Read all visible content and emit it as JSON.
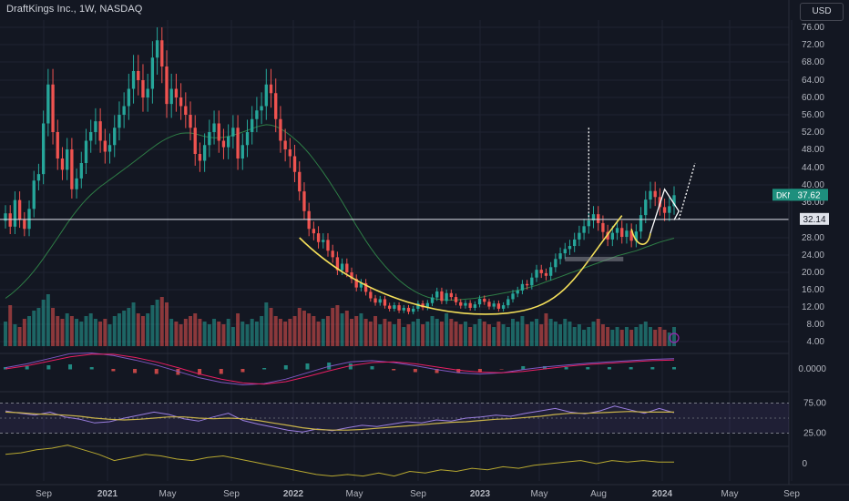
{
  "header": {
    "title": "DraftKings Inc., 1W, NASDAQ",
    "currency_button": "USD"
  },
  "colors": {
    "background": "#131722",
    "grid": "#1f2331",
    "up": "#26a69a",
    "down": "#ef5350",
    "ma_line": "#2e7d46",
    "cup_curve": "#f5e05a",
    "macd_line": "#7e57c2",
    "signal_line": "#e91e63",
    "rsi_line": "#9b7fe0",
    "rsi_ma": "#c9b34a",
    "osc_line": "#b7a830",
    "badge": "#1e8f7d"
  },
  "chart_data": [
    {
      "type": "candlestick",
      "title": "DraftKings Inc., 1W, NASDAQ",
      "x_ticks": [
        "Sep",
        "2021",
        "May",
        "Sep",
        "2022",
        "May",
        "Sep",
        "2023",
        "May",
        "Aug",
        "2024",
        "May",
        "Sep"
      ],
      "y_ticks": [
        "76.00",
        "72.00",
        "68.00",
        "64.00",
        "60.00",
        "56.00",
        "52.00",
        "48.00",
        "44.00",
        "40.00",
        "36.00",
        "28.00",
        "24.00",
        "20.00",
        "16.00",
        "12.00",
        "8.00",
        "4.00"
      ],
      "ylim": [
        4,
        78
      ],
      "scale": "log",
      "symbol_label": "DKNG",
      "last_price": "37.62",
      "horizontal_level": "32.14",
      "close": [
        33.5,
        30.5,
        36.5,
        32.0,
        30.0,
        34.5,
        41.0,
        42.5,
        54.0,
        63.0,
        52.0,
        46.0,
        43.5,
        48.0,
        39.0,
        41.5,
        45.0,
        50.0,
        52.0,
        54.5,
        50.0,
        47.5,
        49.0,
        53.0,
        56.0,
        58.0,
        62.0,
        66.0,
        64.0,
        60.0,
        62.0,
        69.0,
        73.0,
        67.0,
        58.5,
        62.0,
        60.0,
        58.0,
        56.0,
        53.0,
        47.0,
        45.5,
        49.0,
        52.0,
        54.0,
        50.0,
        48.5,
        51.0,
        53.0,
        46.0,
        49.0,
        52.0,
        55.0,
        57.0,
        58.0,
        63.0,
        61.0,
        55.0,
        50.0,
        48.0,
        46.5,
        43.0,
        38.5,
        34.0,
        30.0,
        29.0,
        27.0,
        27.5,
        25.0,
        23.5,
        20.5,
        22.0,
        20.0,
        18.5,
        16.5,
        17.5,
        15.5,
        14.0,
        13.0,
        13.8,
        12.3,
        11.6,
        12.4,
        11.2,
        11.8,
        10.9,
        11.6,
        12.8,
        11.9,
        12.9,
        14.2,
        15.6,
        13.4,
        15.2,
        14.3,
        13.1,
        12.3,
        12.9,
        11.8,
        12.6,
        13.9,
        13.2,
        12.1,
        12.8,
        11.6,
        12.4,
        13.8,
        15.1,
        15.8,
        17.3,
        17.0,
        18.8,
        20.6,
        19.8,
        19.2,
        21.2,
        23.1,
        24.4,
        25.4,
        26.1,
        27.6,
        29.1,
        30.6,
        31.9,
        33.3,
        31.3,
        29.3,
        27.6,
        29.1,
        30.2,
        28.2,
        29.6,
        27.3,
        29.4,
        33.1,
        36.6,
        38.6,
        37.2,
        34.9,
        33.6,
        35.1,
        37.62
      ],
      "moving_average": [
        14,
        14.8,
        15.7,
        16.7,
        17.8,
        19,
        20.3,
        21.7,
        23.2,
        24.8,
        26.4,
        28,
        29.6,
        31.2,
        32.7,
        34.1,
        35.4,
        36.6,
        37.7,
        38.7,
        39.6,
        40.4,
        41.2,
        42,
        42.8,
        43.6,
        44.4,
        45.2,
        46,
        46.8,
        47.6,
        48.4,
        49.2,
        49.9,
        50.5,
        51,
        51.4,
        51.7,
        51.8,
        51.8,
        51.6,
        51.3,
        51,
        50.8,
        50.7,
        50.7,
        50.8,
        51,
        51.3,
        51.6,
        52,
        52.4,
        52.8,
        53.2,
        53.5,
        53.7,
        53.6,
        53.3,
        52.8,
        52.1,
        51.3,
        50.4,
        49.4,
        48.3,
        47.1,
        45.8,
        44.4,
        42.9,
        41.3,
        39.6,
        37.9,
        36.1,
        34.3,
        32.5,
        30.7,
        29,
        27.3,
        25.7,
        24.2,
        22.8,
        21.5,
        20.3,
        19.2,
        18.2,
        17.3,
        16.5,
        15.8,
        15.2,
        14.7,
        14.3,
        14,
        13.8,
        13.7,
        13.6,
        13.6,
        13.6,
        13.7,
        13.8,
        13.9,
        14,
        14.2,
        14.4,
        14.6,
        14.8,
        15,
        15.2,
        15.4,
        15.6,
        15.8,
        16.1,
        16.4,
        16.7,
        17,
        17.4,
        17.8,
        18.2,
        18.6,
        19,
        19.4,
        19.8,
        20.2,
        20.6,
        21,
        21.4,
        21.8,
        22.2,
        22.6,
        23,
        23.4,
        23.8,
        24.1,
        24.4,
        24.7,
        25,
        25.4,
        25.8,
        26.2,
        26.6,
        27,
        27.3,
        27.6,
        27.9
      ]
    },
    {
      "type": "bar",
      "title": "",
      "series": [
        {
          "values": [
            0.45,
            0.75,
            0.4,
            0.35,
            0.5,
            0.55,
            0.65,
            0.7,
            0.85,
            0.95,
            0.7,
            0.55,
            0.5,
            0.6,
            0.55,
            0.5,
            0.45,
            0.55,
            0.6,
            0.5,
            0.45,
            0.5,
            0.4,
            0.55,
            0.6,
            0.65,
            0.7,
            0.8,
            0.6,
            0.55,
            0.6,
            0.75,
            0.85,
            0.9,
            0.8,
            0.5,
            0.45,
            0.4,
            0.5,
            0.55,
            0.6,
            0.5,
            0.45,
            0.4,
            0.5,
            0.45,
            0.4,
            0.5,
            0.35,
            0.6,
            0.45,
            0.4,
            0.5,
            0.45,
            0.55,
            0.8,
            0.7,
            0.55,
            0.5,
            0.45,
            0.5,
            0.55,
            0.7,
            0.65,
            0.6,
            0.55,
            0.45,
            0.5,
            0.55,
            0.7,
            0.75,
            0.6,
            0.65,
            0.5,
            0.55,
            0.6,
            0.5,
            0.45,
            0.55,
            0.4,
            0.5,
            0.45,
            0.4,
            0.5,
            0.35,
            0.4,
            0.45,
            0.5,
            0.4,
            0.45,
            0.55,
            0.5,
            0.45,
            0.6,
            0.5,
            0.45,
            0.4,
            0.45,
            0.35,
            0.4,
            0.5,
            0.45,
            0.4,
            0.35,
            0.45,
            0.4,
            0.35,
            0.5,
            0.45,
            0.55,
            0.4,
            0.45,
            0.5,
            0.4,
            0.6,
            0.5,
            0.45,
            0.4,
            0.5,
            0.45,
            0.35,
            0.4,
            0.3,
            0.35,
            0.45,
            0.5,
            0.4,
            0.35,
            0.3,
            0.35,
            0.3,
            0.35,
            0.3,
            0.35,
            0.4,
            0.45,
            0.35,
            0.3,
            0.35,
            0.3,
            0.25,
            0.35
          ]
        }
      ]
    },
    {
      "type": "line",
      "title": "",
      "y_ticks": [
        "0.0000"
      ],
      "series": [
        {
          "values": [
            0.2,
            0.8,
            1.6,
            2.4,
            2.5,
            2.1,
            1.4,
            0.6,
            -0.4,
            -1.4,
            -2.1,
            -2.5,
            -2.3,
            -1.6,
            -0.6,
            0.4,
            1.1,
            1.3,
            1,
            0.5,
            -0.1,
            -0.6,
            -0.8,
            -0.6,
            -0.1,
            0.3,
            0.6,
            0.9,
            1.1,
            1.3,
            1.5,
            1.6
          ]
        },
        {
          "values": [
            0,
            0.5,
            1.2,
            1.9,
            2.3,
            2.3,
            1.8,
            1.1,
            0.2,
            -0.8,
            -1.6,
            -2.2,
            -2.4,
            -2,
            -1.2,
            -0.3,
            0.5,
            1,
            1.1,
            0.8,
            0.3,
            -0.2,
            -0.5,
            -0.6,
            -0.4,
            0,
            0.4,
            0.7,
            0.9,
            1.1,
            1.3,
            1.4
          ]
        }
      ]
    },
    {
      "type": "line",
      "title": "",
      "y_ticks": [
        "75.00",
        "25.00"
      ],
      "ylim": [
        0,
        100
      ],
      "series": [
        {
          "values": [
            62,
            58,
            55,
            60,
            52,
            48,
            42,
            44,
            50,
            55,
            60,
            56,
            49,
            45,
            52,
            58,
            46,
            40,
            35,
            30,
            27,
            32,
            29,
            34,
            38,
            36,
            40,
            44,
            42,
            47,
            45,
            50,
            52,
            55,
            53,
            58,
            62,
            66,
            60,
            57,
            62,
            70,
            64,
            58,
            66,
            59
          ]
        },
        {
          "values": [
            60,
            59,
            57,
            56,
            55,
            53,
            50,
            48,
            47,
            48,
            50,
            52,
            52,
            50,
            49,
            50,
            49,
            46,
            42,
            38,
            34,
            31,
            30,
            30,
            31,
            33,
            35,
            37,
            39,
            41,
            43,
            44,
            46,
            48,
            49,
            51,
            53,
            56,
            58,
            58,
            59,
            60,
            61,
            60,
            60,
            60
          ]
        }
      ]
    },
    {
      "type": "line",
      "title": "",
      "y_ticks": [
        "0"
      ],
      "series": [
        {
          "values": [
            6,
            7,
            9,
            10,
            12,
            9,
            6,
            2,
            4,
            6,
            5,
            3,
            2,
            4,
            5,
            3,
            1,
            -1,
            -3,
            -5,
            -7,
            -8,
            -7,
            -8,
            -6,
            -8,
            -5,
            -6,
            -4,
            -5,
            -3,
            -4,
            -2,
            -3,
            -1,
            0,
            1,
            2,
            0,
            2,
            1,
            2,
            1,
            1
          ]
        }
      ]
    }
  ]
}
